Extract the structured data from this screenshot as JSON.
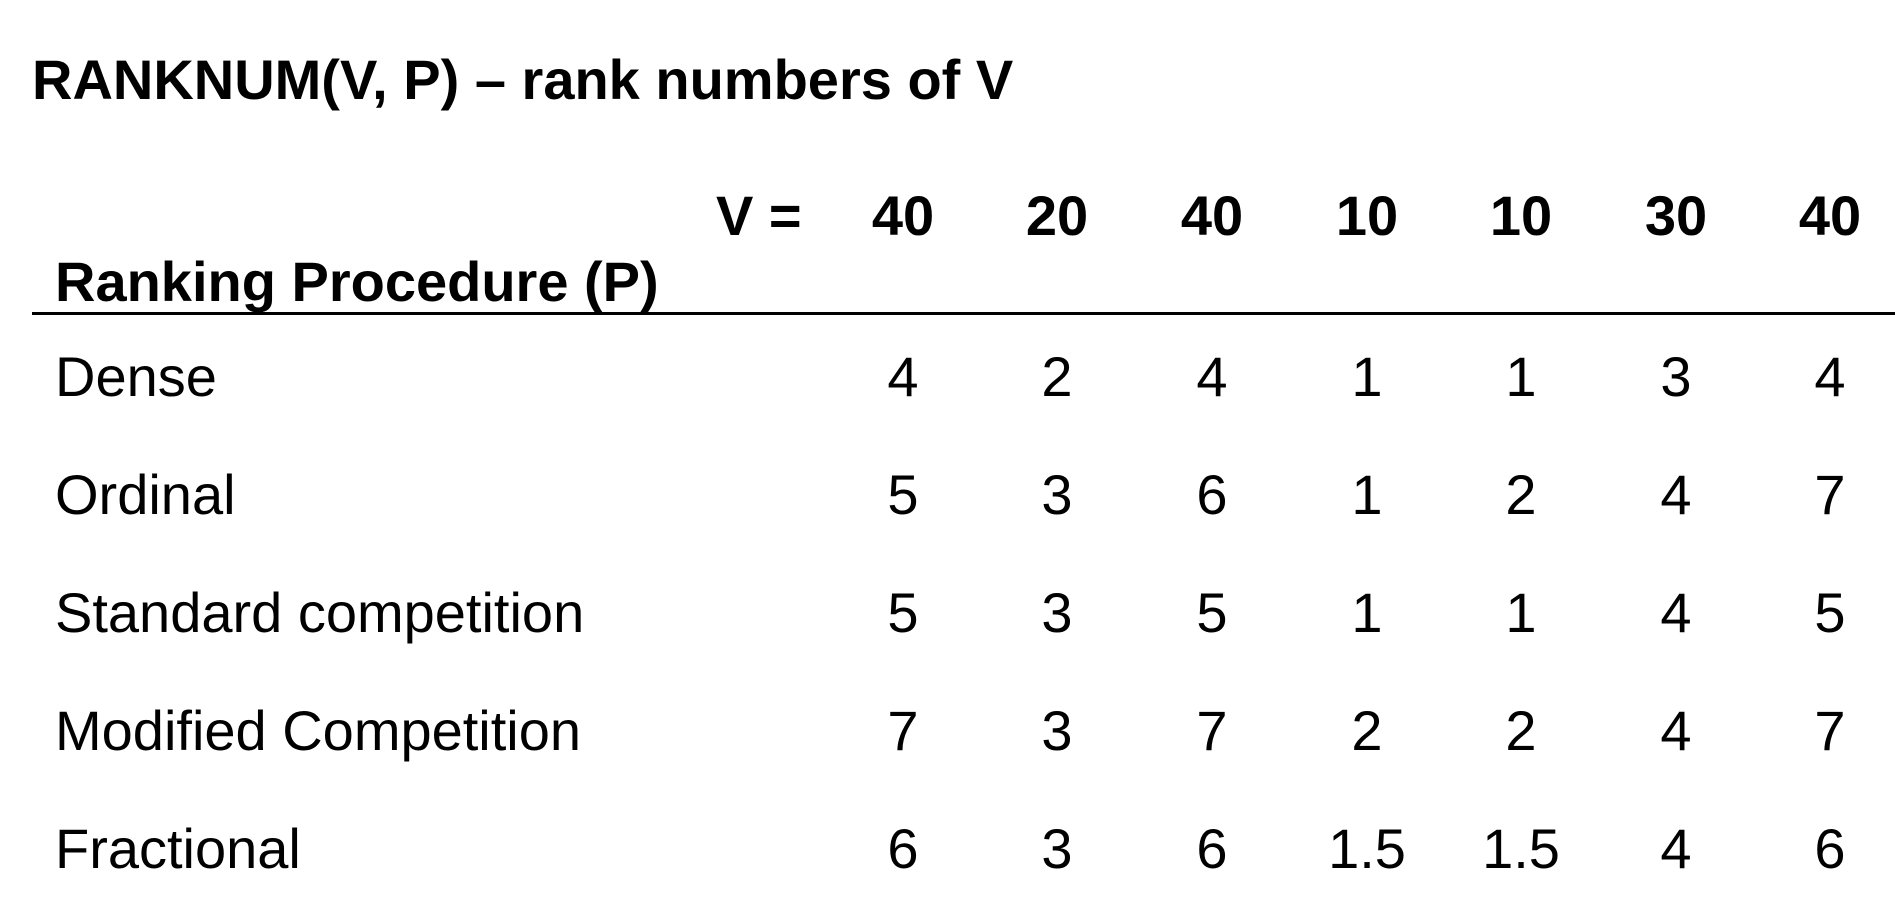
{
  "title": "RANKNUM(V, P) – rank numbers of V",
  "table": {
    "v_label": "V =",
    "v_values": [
      "40",
      "20",
      "40",
      "10",
      "10",
      "30",
      "40"
    ],
    "procedure_header": "Ranking Procedure (P)",
    "rows": [
      {
        "label": "Dense",
        "values": [
          "4",
          "2",
          "4",
          "1",
          "1",
          "3",
          "4"
        ]
      },
      {
        "label": "Ordinal",
        "values": [
          "5",
          "3",
          "6",
          "1",
          "2",
          "4",
          "7"
        ]
      },
      {
        "label": "Standard competition",
        "values": [
          "5",
          "3",
          "5",
          "1",
          "1",
          "4",
          "5"
        ]
      },
      {
        "label": "Modified Competition",
        "values": [
          "7",
          "3",
          "7",
          "2",
          "2",
          "4",
          "7"
        ]
      },
      {
        "label": "Fractional",
        "values": [
          "6",
          "3",
          "6",
          "1.5",
          "1.5",
          "4",
          "6"
        ]
      }
    ]
  }
}
